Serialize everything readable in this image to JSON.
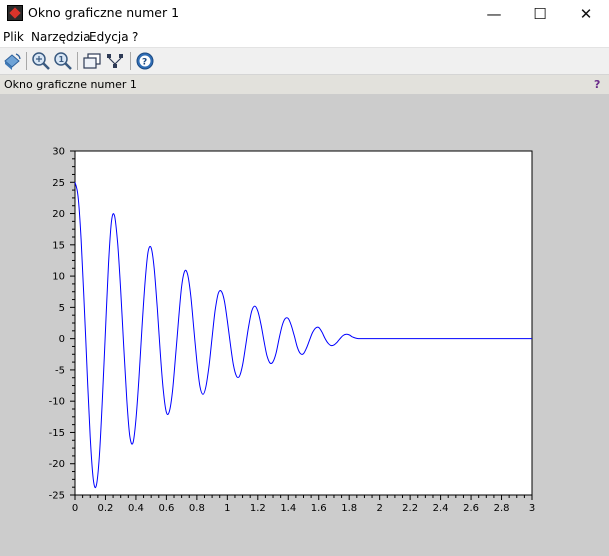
{
  "window": {
    "title": "Okno graficzne numer 1",
    "controls": {
      "minimize": "—",
      "maximize": "☐",
      "close": "✕"
    }
  },
  "menu": [
    "Plik",
    "Narzędzia",
    "Edycja",
    "?"
  ],
  "toolbar": {
    "icons": [
      "rotate-icon",
      "zoom-in-icon",
      "zoom-reset-icon",
      "datatip-icon",
      "edit-axes-icon",
      "help-icon"
    ]
  },
  "info_bar": {
    "text": "Okno graficzne numer 1",
    "help": "?"
  },
  "colors": {
    "background": "#cccccc",
    "axes_background": "#ffffff",
    "line": "#0000ff"
  },
  "chart_data": {
    "type": "line",
    "title": "",
    "xlabel": "",
    "ylabel": "",
    "xlim": [
      0,
      3
    ],
    "ylim": [
      -25,
      30
    ],
    "grid": false,
    "x_ticks": [
      "0",
      "0.2",
      "0.4",
      "0.6",
      "0.8",
      "1",
      "1.2",
      "1.4",
      "1.6",
      "1.8",
      "2",
      "2.2",
      "2.4",
      "2.6",
      "2.8",
      "3"
    ],
    "y_ticks": [
      "30",
      "25",
      "20",
      "15",
      "10",
      "5",
      "0",
      "-5",
      "-10",
      "-15",
      "-20",
      "-25"
    ],
    "series": [
      {
        "color": "#0000ff",
        "x": [
          0.0,
          0.02,
          0.04,
          0.06,
          0.08,
          0.1,
          0.12,
          0.14,
          0.16,
          0.18,
          0.2,
          0.22,
          0.24,
          0.26,
          0.28,
          0.3,
          0.32,
          0.34,
          0.36,
          0.38,
          0.4,
          0.42,
          0.44,
          0.46,
          0.48,
          0.5,
          0.52,
          0.54,
          0.56,
          0.58,
          0.6,
          0.62,
          0.64,
          0.66,
          0.68,
          0.7,
          0.72,
          0.74,
          0.76,
          0.78,
          0.8,
          0.82,
          0.84,
          0.86,
          0.88,
          0.9,
          0.92,
          0.94,
          0.96,
          0.98,
          1.0,
          1.02,
          1.04,
          1.06,
          1.08,
          1.1,
          1.12,
          1.14,
          1.16,
          1.18,
          1.2,
          1.22,
          1.24,
          1.26,
          1.28,
          1.3,
          1.32,
          1.34,
          1.36,
          1.38,
          1.4,
          1.42,
          1.44,
          1.46,
          1.48,
          1.5,
          1.52,
          1.54,
          1.56,
          1.58,
          1.6,
          1.62,
          1.64,
          1.66,
          1.68,
          1.7,
          1.72,
          1.74,
          1.76,
          1.78,
          1.8,
          1.82,
          1.84,
          1.86,
          1.88,
          1.9,
          1.92,
          1.94,
          1.96,
          1.98,
          2.0,
          2.2,
          2.4,
          2.6,
          2.8,
          3.0
        ],
        "y": [
          25.0,
          22.8,
          15.9,
          5.8,
          -5.5,
          -15.7,
          -22.5,
          -23.5,
          -18.7,
          -9.6,
          1.4,
          11.9,
          18.9,
          19.6,
          15.2,
          7.7,
          -1.2,
          -9.8,
          -15.6,
          -16.7,
          -13.0,
          -6.2,
          1.8,
          9.1,
          13.9,
          14.5,
          11.2,
          4.9,
          -2.3,
          -8.4,
          -11.8,
          -11.6,
          -8.4,
          -2.9,
          3.1,
          8.3,
          10.8,
          10.2,
          6.8,
          1.6,
          -3.7,
          -7.6,
          -8.9,
          -7.6,
          -4.3,
          0.2,
          4.5,
          7.2,
          7.6,
          6.1,
          2.9,
          -0.9,
          -4.2,
          -6.0,
          -6.0,
          -4.2,
          -1.2,
          2.0,
          4.4,
          5.2,
          4.4,
          2.4,
          -0.3,
          -2.7,
          -3.9,
          -3.7,
          -2.3,
          0.0,
          2.1,
          3.2,
          3.2,
          2.1,
          0.4,
          -1.4,
          -2.4,
          -2.4,
          -1.5,
          -0.2,
          1.0,
          1.7,
          1.8,
          1.1,
          0.1,
          -0.7,
          -1.1,
          -1.0,
          -0.6,
          0.0,
          0.5,
          0.7,
          0.6,
          0.3,
          0.1,
          0.0,
          0.0,
          0.0,
          0.0,
          0.0,
          0.0,
          0.0,
          0.0,
          0.0,
          0.0,
          0.0,
          0.0,
          0.0
        ]
      }
    ]
  }
}
